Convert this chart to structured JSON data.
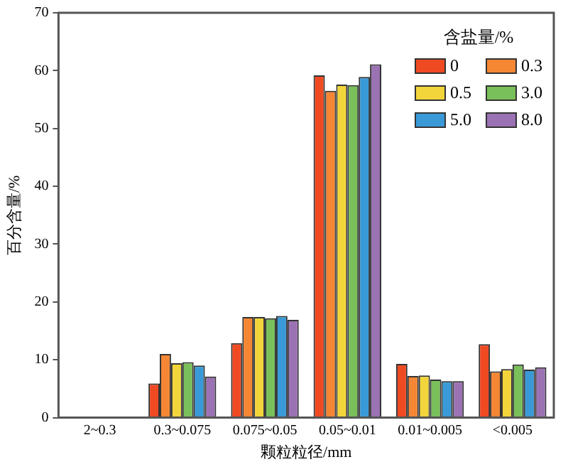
{
  "chart_data": {
    "type": "bar",
    "xlabel": "颗粒粒径/mm",
    "ylabel": "百分含量/%",
    "legend_title": "含盐量/%",
    "legend": "top right",
    "grid": false,
    "categories": [
      "2~0.3",
      "0.3~0.075",
      "0.075~0.05",
      "0.05~0.01",
      "0.01~0.005",
      "<0.005"
    ],
    "ylim": [
      0,
      70
    ],
    "yticks": [
      0,
      10,
      20,
      30,
      40,
      50,
      60,
      70
    ],
    "series": [
      {
        "name": "0",
        "color": "#f04a23",
        "values": [
          0,
          5.9,
          12.9,
          59.2,
          9.3,
          12.7
        ]
      },
      {
        "name": "0.3",
        "color": "#f48634",
        "values": [
          0,
          11,
          17.4,
          56.5,
          7.2,
          8
        ]
      },
      {
        "name": "0.5",
        "color": "#f2d53a",
        "values": [
          0,
          9.4,
          17.4,
          57.6,
          7.3,
          8.4
        ]
      },
      {
        "name": "3.0",
        "color": "#79bf5a",
        "values": [
          0,
          9.6,
          17.2,
          57.5,
          6.6,
          9.2
        ]
      },
      {
        "name": "5.0",
        "color": "#3a9ad8",
        "values": [
          0,
          9,
          17.6,
          58.9,
          6.3,
          8.3
        ]
      },
      {
        "name": "8.0",
        "color": "#9b72b4",
        "values": [
          0,
          7.1,
          16.9,
          61.1,
          6.3,
          8.7
        ]
      }
    ]
  }
}
